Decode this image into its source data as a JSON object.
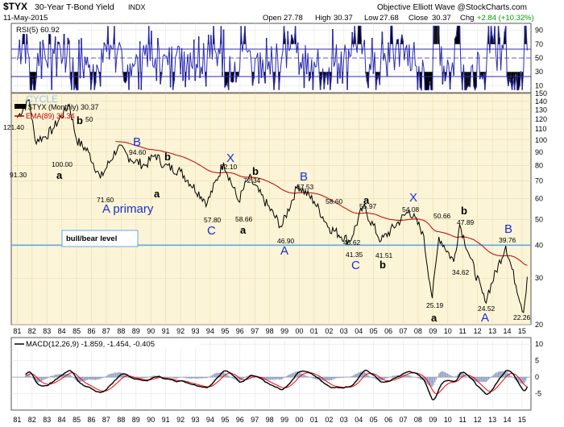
{
  "header": {
    "symbol": "$TYX",
    "name": "30-Year T-Bond Yield",
    "exchange": "INDX",
    "date": "11-May-2015",
    "brand": "Objective Elliott Wave @StockCharts.com",
    "open_label": "Open",
    "open": "27.78",
    "high_label": "High",
    "high": "30.37",
    "low_label": "Low",
    "low": "27.68",
    "close_label": "Close",
    "close": "30.37",
    "chg_label": "Chg",
    "chg": "+2.84 (+10.32%)",
    "chg_color": "#00a000"
  },
  "rsi": {
    "label": "RSI(5) 60.92",
    "ticks": [
      "90",
      "70",
      "50",
      "30",
      "10"
    ],
    "overbought": 70,
    "oversold": 30,
    "line_color": "#2b2bb0",
    "fill_color": "#000000"
  },
  "price": {
    "cycle_label": "CYCLE",
    "series_label": "$TYX (Monthly) 30.37",
    "ema_label": "EMA(89) 36.34",
    "ema_color": "#c00000",
    "line_color": "#000000",
    "level_label": "bull/bear level",
    "level_color": "#5fa8e8",
    "y_ticks": [
      "150",
      "140",
      "130",
      "120",
      "110",
      "100",
      "90",
      "80",
      "70",
      "60",
      "50",
      "40",
      "30",
      "20"
    ],
    "scale": "log"
  },
  "macd": {
    "label": "MACD(12,26,9) -1.859, -1.454, -0.405",
    "ticks": [
      "10",
      "5",
      "0",
      "-5"
    ],
    "macd_color": "#000000",
    "signal_color": "#ff0000",
    "hist_color": "#8fa0c8"
  },
  "x_ticks": [
    "81",
    "82",
    "83",
    "84",
    "85",
    "86",
    "87",
    "88",
    "89",
    "90",
    "91",
    "92",
    "93",
    "94",
    "95",
    "96",
    "97",
    "98",
    "99",
    "00",
    "01",
    "02",
    "03",
    "04",
    "05",
    "06",
    "07",
    "08",
    "09",
    "10",
    "11",
    "12",
    "13",
    "14",
    "15"
  ],
  "annotations": [
    {
      "id": "ann-121-40",
      "text": "121.40",
      "kind": "value"
    },
    {
      "id": "ann-91-30",
      "text": "91.30",
      "kind": "value"
    },
    {
      "id": "ann-100",
      "text": "100.00",
      "kind": "value"
    },
    {
      "id": "ann-a-83",
      "text": "a",
      "kind": "wave-black"
    },
    {
      "id": "ann-b-84",
      "text": "b",
      "kind": "wave-black"
    },
    {
      "id": "ann-50",
      "text": "50",
      "kind": "value"
    },
    {
      "id": "ann-71-60",
      "text": "71.60",
      "kind": "value"
    },
    {
      "id": "ann-a-primary",
      "text": "A primary",
      "kind": "wave-blue"
    },
    {
      "id": "ann-B-88",
      "text": "B",
      "kind": "wave-blue"
    },
    {
      "id": "ann-94-60",
      "text": "94.60",
      "kind": "value"
    },
    {
      "id": "ann-b-90",
      "text": "b",
      "kind": "wave-black"
    },
    {
      "id": "ann-a-90",
      "text": "a",
      "kind": "wave-black"
    },
    {
      "id": "ann-57-80",
      "text": "57.80",
      "kind": "value"
    },
    {
      "id": "ann-C-93",
      "text": "C",
      "kind": "wave-blue"
    },
    {
      "id": "ann-X-95",
      "text": "X",
      "kind": "wave-blue"
    },
    {
      "id": "ann-82-10",
      "text": "82.10",
      "kind": "value"
    },
    {
      "id": "ann-b-96",
      "text": "b",
      "kind": "wave-black"
    },
    {
      "id": "ann-72-34",
      "text": "72.34",
      "kind": "value"
    },
    {
      "id": "ann-58-66",
      "text": "58.66",
      "kind": "value"
    },
    {
      "id": "ann-a-96",
      "text": "a",
      "kind": "wave-black"
    },
    {
      "id": "ann-B-99",
      "text": "B",
      "kind": "wave-blue"
    },
    {
      "id": "ann-67-53",
      "text": "67.53",
      "kind": "value"
    },
    {
      "id": "ann-46-90",
      "text": "46.90",
      "kind": "value"
    },
    {
      "id": "ann-A-98",
      "text": "A",
      "kind": "wave-blue"
    },
    {
      "id": "ann-58-60",
      "text": "58.60",
      "kind": "value"
    },
    {
      "id": "ann-46-62",
      "text": "46.62",
      "kind": "value"
    },
    {
      "id": "ann-a-04",
      "text": "a",
      "kind": "wave-black"
    },
    {
      "id": "ann-55-97",
      "text": "55.97",
      "kind": "value"
    },
    {
      "id": "ann-41-35",
      "text": "41.35",
      "kind": "value"
    },
    {
      "id": "ann-C-03",
      "text": "C",
      "kind": "wave-blue"
    },
    {
      "id": "ann-41-51",
      "text": "41.51",
      "kind": "value"
    },
    {
      "id": "ann-b-05",
      "text": "b",
      "kind": "wave-black"
    },
    {
      "id": "ann-X-07",
      "text": "X",
      "kind": "wave-blue"
    },
    {
      "id": "ann-54-08",
      "text": "54.08",
      "kind": "value"
    },
    {
      "id": "ann-50-66",
      "text": "50.66",
      "kind": "value"
    },
    {
      "id": "ann-b-11",
      "text": "b",
      "kind": "wave-black"
    },
    {
      "id": "ann-47-89",
      "text": "47.89",
      "kind": "value"
    },
    {
      "id": "ann-34-62",
      "text": "34.62",
      "kind": "value"
    },
    {
      "id": "ann-25-19",
      "text": "25.19",
      "kind": "value"
    },
    {
      "id": "ann-a-08",
      "text": "a",
      "kind": "wave-black"
    },
    {
      "id": "ann-B-14",
      "text": "B",
      "kind": "wave-blue"
    },
    {
      "id": "ann-39-76",
      "text": "39.76",
      "kind": "value"
    },
    {
      "id": "ann-24-52",
      "text": "24.52",
      "kind": "value"
    },
    {
      "id": "ann-A-12",
      "text": "A",
      "kind": "wave-blue"
    },
    {
      "id": "ann-22-26",
      "text": "22.26",
      "kind": "value"
    }
  ],
  "chart_data": [
    {
      "type": "line",
      "title": "RSI(5) 60.92",
      "ylim": [
        0,
        100
      ],
      "grid": true,
      "series": [
        {
          "name": "RSI(5)",
          "values": [
            60.92
          ]
        }
      ]
    },
    {
      "type": "line",
      "title": "$TYX 30-Year T-Bond Yield",
      "scale": "log",
      "ylim": [
        20,
        150
      ],
      "grid": true,
      "series": [
        {
          "name": "$TYX (Monthly)",
          "x": [
            1981.0,
            1981.8,
            1982.2,
            1982.9,
            1983.4,
            1984.5,
            1985.0,
            1985.8,
            1986.6,
            1987.8,
            1988.6,
            1989.6,
            1990.3,
            1990.9,
            1992.0,
            1993.8,
            1994.9,
            1995.9,
            1996.6,
            1998.8,
            1999.9,
            2001.0,
            2002.0,
            2003.4,
            2004.3,
            2005.5,
            2007.4,
            2008.3,
            2008.95,
            2009.4,
            2010.4,
            2010.8,
            2011.5,
            2012.5,
            2013.9,
            2015.1,
            2015.35
          ],
          "y": [
            121.4,
            142.0,
            100.0,
            103.0,
            110.0,
            136.5,
            100.0,
            90.0,
            71.6,
            94.6,
            85.0,
            80.0,
            88.0,
            80.0,
            76.0,
            57.8,
            82.1,
            58.66,
            72.34,
            46.9,
            67.53,
            58.6,
            46.62,
            41.35,
            55.97,
            41.51,
            54.08,
            45.0,
            25.19,
            43.0,
            34.62,
            47.89,
            36.0,
            24.52,
            39.76,
            22.26,
            30.37
          ]
        },
        {
          "name": "EMA(89)",
          "values": [
            36.34
          ]
        }
      ],
      "reference_lines": [
        {
          "label": "bull/bear level",
          "y": 40
        }
      ]
    },
    {
      "type": "line",
      "title": "MACD(12,26,9) -1.859, -1.454, -0.405",
      "ylim": [
        -10,
        12
      ],
      "grid": true,
      "series": [
        {
          "name": "MACD",
          "values": [
            -1.859
          ]
        },
        {
          "name": "Signal",
          "values": [
            -1.454
          ]
        },
        {
          "name": "Histogram",
          "values": [
            -0.405
          ]
        }
      ]
    }
  ]
}
